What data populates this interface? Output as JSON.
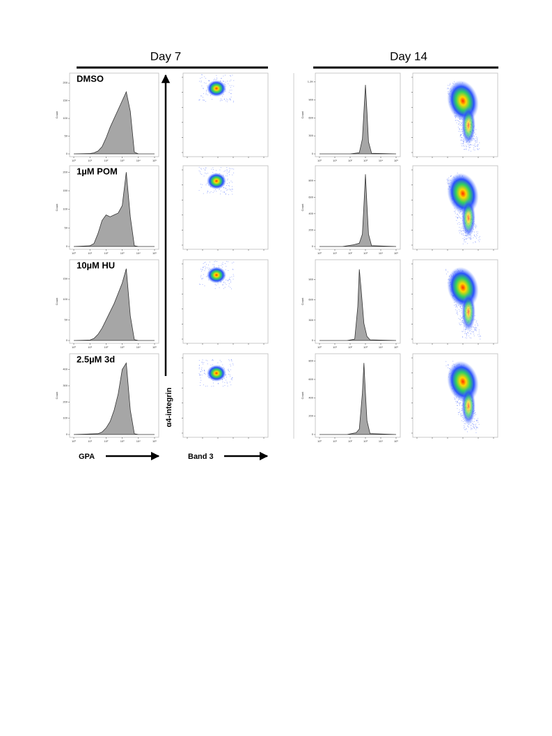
{
  "headers": [
    "Day 7",
    "Day 14"
  ],
  "row_labels": [
    "DMSO",
    "1µM POM",
    "10µM HU",
    "2.5µM 3d"
  ],
  "axis_labels": {
    "gpa": "GPA",
    "band3": "Band 3",
    "a4": "α4-integrin"
  },
  "chart_data": [
    {
      "type": "area",
      "ylabel": "Count",
      "color": "#a6a6a6",
      "xlim": [
        0,
        5
      ],
      "ylim": [
        0,
        220
      ],
      "yticks": [
        0,
        50,
        100,
        150,
        200
      ],
      "xticks": [
        {
          "value": 0,
          "label": "10⁰"
        },
        {
          "value": 1,
          "label": "10¹"
        },
        {
          "value": 2,
          "label": "10²"
        },
        {
          "value": 3,
          "label": "10³"
        },
        {
          "value": 4,
          "label": "10⁴"
        },
        {
          "value": 5,
          "label": "10⁵"
        }
      ],
      "x": [
        0,
        1,
        1.25,
        1.5,
        1.75,
        2,
        2.25,
        2.5,
        2.75,
        3,
        3.25,
        3.5,
        3.75,
        4,
        5
      ],
      "values": [
        0,
        1,
        3,
        8,
        20,
        45,
        75,
        100,
        125,
        150,
        175,
        120,
        5,
        0,
        0
      ]
    },
    {
      "type": "area",
      "ylabel": "Count",
      "color": "#a6a6a6",
      "xlim": [
        0,
        5
      ],
      "ylim": [
        0,
        210
      ],
      "yticks": [
        0,
        50,
        100,
        150,
        200
      ],
      "xticks": [
        {
          "value": 0,
          "label": "10⁰"
        },
        {
          "value": 1,
          "label": "10¹"
        },
        {
          "value": 2,
          "label": "10²"
        },
        {
          "value": 3,
          "label": "10³"
        },
        {
          "value": 4,
          "label": "10⁴"
        },
        {
          "value": 5,
          "label": "10⁵"
        }
      ],
      "x": [
        0,
        1,
        1.25,
        1.5,
        1.75,
        2,
        2.25,
        2.5,
        2.75,
        3,
        3.25,
        3.5,
        3.75,
        4,
        5
      ],
      "values": [
        0,
        2,
        8,
        35,
        70,
        85,
        80,
        85,
        90,
        110,
        200,
        80,
        2,
        0,
        0
      ]
    },
    {
      "type": "area",
      "ylabel": "Count",
      "color": "#a6a6a6",
      "xlim": [
        0,
        5
      ],
      "ylim": [
        0,
        190
      ],
      "yticks": [
        0,
        50,
        100,
        150
      ],
      "xticks": [
        {
          "value": 0,
          "label": "10⁰"
        },
        {
          "value": 1,
          "label": "10¹"
        },
        {
          "value": 2,
          "label": "10²"
        },
        {
          "value": 3,
          "label": "10³"
        },
        {
          "value": 4,
          "label": "10⁴"
        },
        {
          "value": 5,
          "label": "10⁵"
        }
      ],
      "x": [
        0,
        1,
        1.25,
        1.5,
        1.75,
        2,
        2.25,
        2.5,
        2.75,
        3,
        3.25,
        3.5,
        3.75,
        4,
        5
      ],
      "values": [
        0,
        1,
        5,
        15,
        30,
        50,
        70,
        90,
        115,
        140,
        175,
        60,
        2,
        0,
        0
      ]
    },
    {
      "type": "area",
      "ylabel": "Count",
      "color": "#a6a6a6",
      "xlim": [
        0,
        5
      ],
      "ylim": [
        0,
        480
      ],
      "yticks": [
        0,
        100,
        200,
        300,
        400
      ],
      "xticks": [
        {
          "value": 0,
          "label": "10⁰"
        },
        {
          "value": 1,
          "label": "10¹"
        },
        {
          "value": 2,
          "label": "10²"
        },
        {
          "value": 3,
          "label": "10³"
        },
        {
          "value": 4,
          "label": "10⁴"
        },
        {
          "value": 5,
          "label": "10⁵"
        }
      ],
      "x": [
        0,
        1.5,
        1.75,
        2,
        2.25,
        2.5,
        2.75,
        3,
        3.25,
        3.5,
        3.75,
        4,
        5
      ],
      "values": [
        0,
        5,
        15,
        40,
        80,
        150,
        250,
        400,
        440,
        150,
        5,
        0,
        0
      ]
    },
    {
      "type": "area",
      "ylabel": "Count",
      "color": "#a6a6a6",
      "xlim": [
        0,
        5
      ],
      "ylim": [
        0,
        1300
      ],
      "yticks": [
        0,
        300,
        600,
        900,
        {
          "value": 1200,
          "label": "1.2K"
        }
      ],
      "xticks": [
        {
          "value": 0,
          "label": "10⁰"
        },
        {
          "value": 1,
          "label": "10¹"
        },
        {
          "value": 2,
          "label": "10²"
        },
        {
          "value": 3,
          "label": "10³"
        },
        {
          "value": 4,
          "label": "10⁴"
        },
        {
          "value": 5,
          "label": "10⁵"
        }
      ],
      "x": [
        0,
        2,
        2.6,
        2.8,
        2.9,
        3,
        3.1,
        3.2,
        3.4,
        5
      ],
      "values": [
        0,
        0,
        20,
        250,
        700,
        1150,
        700,
        200,
        10,
        0
      ]
    },
    {
      "type": "area",
      "ylabel": "Count",
      "color": "#a6a6a6",
      "xlim": [
        0,
        5
      ],
      "ylim": [
        0,
        950
      ],
      "yticks": [
        0,
        200,
        400,
        600,
        800
      ],
      "xticks": [
        {
          "value": 0,
          "label": "10⁰"
        },
        {
          "value": 1,
          "label": "10¹"
        },
        {
          "value": 2,
          "label": "10²"
        },
        {
          "value": 3,
          "label": "10³"
        },
        {
          "value": 4,
          "label": "10⁴"
        },
        {
          "value": 5,
          "label": "10⁵"
        }
      ],
      "x": [
        0,
        1.5,
        2.2,
        2.6,
        2.8,
        2.9,
        3,
        3.1,
        3.2,
        3.4,
        5
      ],
      "values": [
        0,
        0,
        20,
        40,
        150,
        500,
        880,
        500,
        150,
        10,
        0
      ]
    },
    {
      "type": "area",
      "ylabel": "Count",
      "color": "#a6a6a6",
      "xlim": [
        0,
        5
      ],
      "ylim": [
        0,
        1150
      ],
      "yticks": [
        0,
        300,
        600,
        900
      ],
      "xticks": [
        {
          "value": 0,
          "label": "10⁰"
        },
        {
          "value": 1,
          "label": "10¹"
        },
        {
          "value": 2,
          "label": "10²"
        },
        {
          "value": 3,
          "label": "10³"
        },
        {
          "value": 4,
          "label": "10⁴"
        },
        {
          "value": 5,
          "label": "10⁵"
        }
      ],
      "x": [
        0,
        1.8,
        2.3,
        2.5,
        2.6,
        2.7,
        2.9,
        3.1,
        3.3,
        5
      ],
      "values": [
        0,
        0,
        20,
        500,
        1050,
        800,
        250,
        60,
        10,
        0
      ]
    },
    {
      "type": "area",
      "ylabel": "Count",
      "color": "#a6a6a6",
      "xlim": [
        0,
        5
      ],
      "ylim": [
        0,
        850
      ],
      "yticks": [
        0,
        200,
        400,
        600,
        800
      ],
      "xticks": [
        {
          "value": 0,
          "label": "10⁰"
        },
        {
          "value": 1,
          "label": "10¹"
        },
        {
          "value": 2,
          "label": "10²"
        },
        {
          "value": 3,
          "label": "10³"
        },
        {
          "value": 4,
          "label": "10⁴"
        },
        {
          "value": 5,
          "label": "10⁵"
        }
      ],
      "x": [
        0,
        1.8,
        2.4,
        2.6,
        2.8,
        2.9,
        3,
        3.1,
        3.3,
        5
      ],
      "values": [
        0,
        0,
        20,
        60,
        450,
        780,
        450,
        150,
        10,
        0
      ]
    }
  ]
}
